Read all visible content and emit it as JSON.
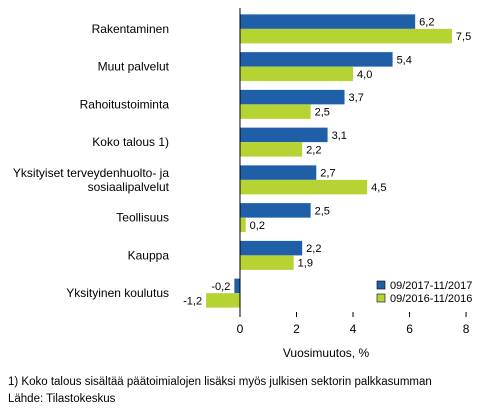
{
  "chart_data": {
    "type": "bar",
    "orientation": "horizontal",
    "categories": [
      [
        "Rakentaminen"
      ],
      [
        "Muut palvelut"
      ],
      [
        "Rahoitustoiminta"
      ],
      [
        "Koko talous 1)"
      ],
      [
        "Yksityiset terveydenhuolto- ja",
        "sosiaalipalvelut"
      ],
      [
        "Teollisuus"
      ],
      [
        "Kauppa"
      ],
      [
        "Yksityinen koulutus"
      ]
    ],
    "series": [
      {
        "name": "09/2017-11/2017",
        "color": "#1f5fa8",
        "values": [
          6.2,
          5.4,
          3.7,
          3.1,
          2.7,
          2.5,
          2.2,
          -0.2
        ],
        "labels": [
          "6,2",
          "5,4",
          "3,7",
          "3,1",
          "2,7",
          "2,5",
          "2,2",
          "-0,2"
        ]
      },
      {
        "name": "09/2016-11/2016",
        "color": "#b6d334",
        "values": [
          7.5,
          4.0,
          2.5,
          2.2,
          4.5,
          0.2,
          1.9,
          -1.2
        ],
        "labels": [
          "7,5",
          "4,0",
          "2,5",
          "2,2",
          "4,5",
          "0,2",
          "1,9",
          "-1,2"
        ]
      }
    ],
    "xticks": [
      0,
      2,
      4,
      6,
      8
    ],
    "xlim": [
      -2.3,
      8.6
    ],
    "xlabel": "Vuosimuutos, %",
    "grid": false,
    "legend_position": "bottom-right"
  },
  "footnotes": [
    "1) Koko talous sisältää päätoimialojen lisäksi myös julkisen sektorin palkkasumman",
    "Lähde: Tilastokeskus"
  ]
}
